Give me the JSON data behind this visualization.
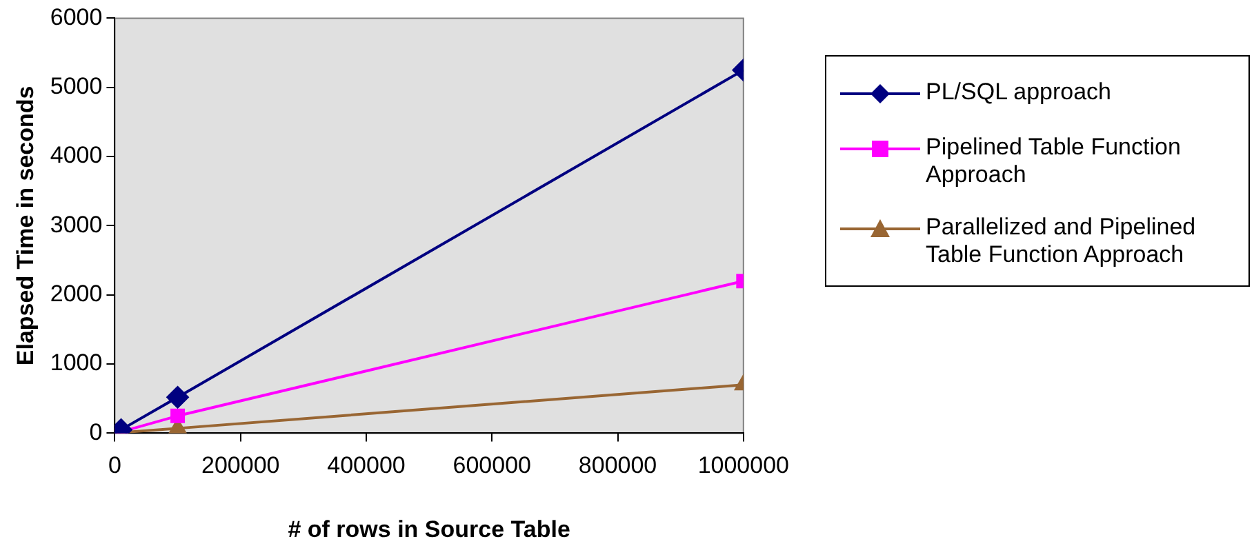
{
  "chart_data": {
    "type": "line",
    "xlabel": "# of rows in Source Table",
    "ylabel": "Elapsed Time in seconds",
    "x": [
      10000,
      100000,
      1000000
    ],
    "series": [
      {
        "name": "PL/SQL approach",
        "color": "#000080",
        "marker": "diamond",
        "values": [
          50,
          520,
          5250
        ]
      },
      {
        "name": "Pipelined Table Function Approach",
        "color": "#ff00ff",
        "marker": "square",
        "values": [
          20,
          250,
          2200
        ]
      },
      {
        "name": "Parallelized and Pipelined Table Function Approach",
        "color": "#996633",
        "marker": "triangle",
        "values": [
          10,
          70,
          700
        ]
      }
    ],
    "xlim": [
      0,
      1000000
    ],
    "xticks": [
      0,
      200000,
      400000,
      600000,
      800000,
      1000000
    ],
    "ylim": [
      0,
      6000
    ],
    "yticks": [
      0,
      1000,
      2000,
      3000,
      4000,
      5000,
      6000
    ],
    "grid": false,
    "legend": "right"
  }
}
